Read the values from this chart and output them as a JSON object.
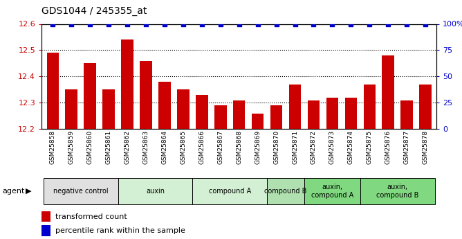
{
  "title": "GDS1044 / 245355_at",
  "samples": [
    "GSM25858",
    "GSM25859",
    "GSM25860",
    "GSM25861",
    "GSM25862",
    "GSM25863",
    "GSM25864",
    "GSM25865",
    "GSM25866",
    "GSM25867",
    "GSM25868",
    "GSM25869",
    "GSM25870",
    "GSM25871",
    "GSM25872",
    "GSM25873",
    "GSM25874",
    "GSM25875",
    "GSM25876",
    "GSM25877",
    "GSM25878"
  ],
  "bar_values": [
    12.49,
    12.35,
    12.45,
    12.35,
    12.54,
    12.46,
    12.38,
    12.35,
    12.33,
    12.29,
    12.31,
    12.26,
    12.29,
    12.37,
    12.31,
    12.32,
    12.32,
    12.37,
    12.48,
    12.31,
    12.37
  ],
  "percentile_values": [
    100,
    100,
    100,
    100,
    100,
    100,
    100,
    100,
    100,
    100,
    100,
    100,
    100,
    100,
    100,
    100,
    100,
    100,
    100,
    100,
    100
  ],
  "ylim_left": [
    12.2,
    12.6
  ],
  "ylim_right": [
    0,
    100
  ],
  "yticks_left": [
    12.2,
    12.3,
    12.4,
    12.5,
    12.6
  ],
  "yticks_right": [
    0,
    25,
    50,
    75,
    100
  ],
  "ytick_labels_right": [
    "0",
    "25",
    "50",
    "75",
    "100%"
  ],
  "agent_groups": [
    {
      "label": "negative control",
      "start": 0,
      "end": 4,
      "color": "#e0e0e0"
    },
    {
      "label": "auxin",
      "start": 4,
      "end": 8,
      "color": "#d4f0d4"
    },
    {
      "label": "compound A",
      "start": 8,
      "end": 12,
      "color": "#d4f0d4"
    },
    {
      "label": "compound B",
      "start": 12,
      "end": 14,
      "color": "#b0e0b0"
    },
    {
      "label": "auxin,\ncompound A",
      "start": 14,
      "end": 17,
      "color": "#80d880"
    },
    {
      "label": "auxin,\ncompound B",
      "start": 17,
      "end": 21,
      "color": "#80d880"
    }
  ],
  "bar_color": "#cc0000",
  "dot_color": "#0000cc",
  "left_tick_color": "#cc0000",
  "right_tick_color": "#0000cc",
  "background_color": "#ffffff"
}
